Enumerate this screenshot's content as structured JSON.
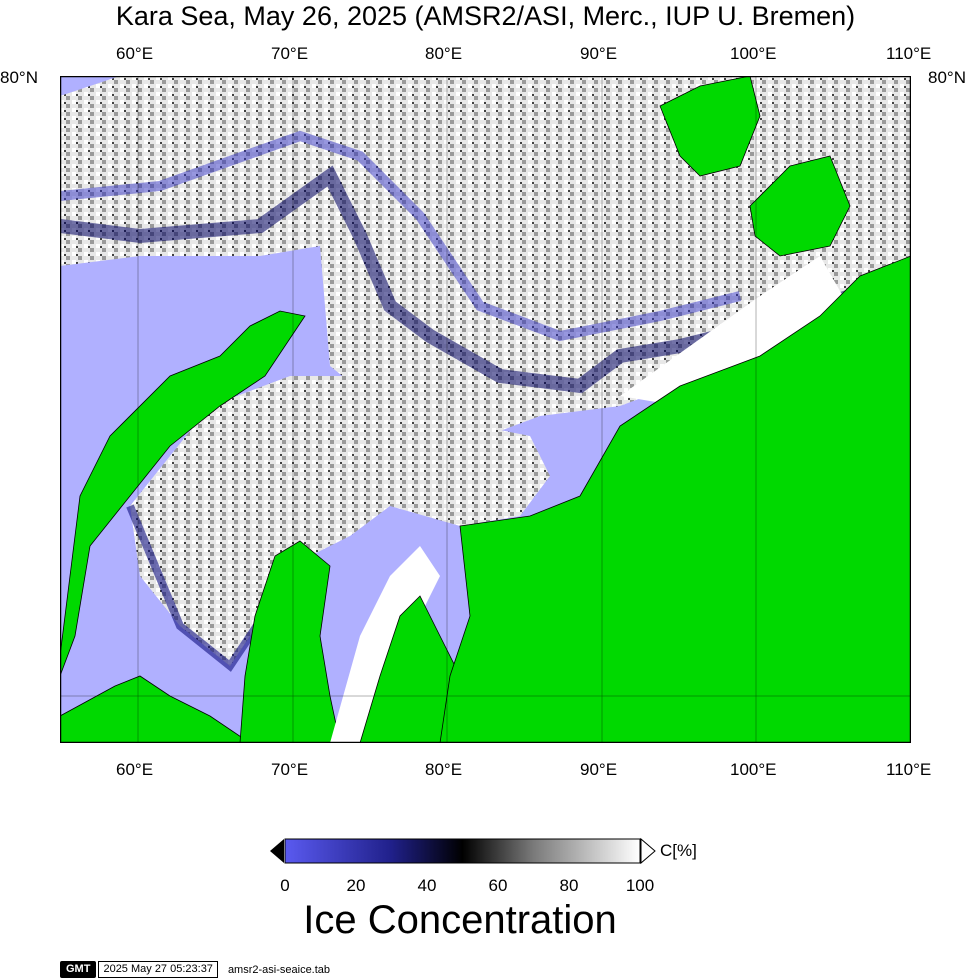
{
  "title": "Kara Sea, May 26, 2025 (AMSR2/ASI, Merc., IUP U. Bremen)",
  "map": {
    "lon_labels": [
      "60°E",
      "70°E",
      "80°E",
      "90°E",
      "100°E",
      "110°E"
    ],
    "lat_label": "80°N",
    "colors": {
      "ocean": "#b0b0ff",
      "land": "#00d900",
      "white_ice": "#ffffff",
      "dark_ice": "#000000"
    }
  },
  "colorbar": {
    "unit": "C[%]",
    "ticks": [
      "0",
      "20",
      "40",
      "60",
      "80",
      "100"
    ],
    "title": "Ice Concentration",
    "stops": [
      "#5a5af0",
      "#20208a",
      "#000000",
      "#7a7a7a",
      "#ffffff"
    ]
  },
  "stamp": {
    "logo": "GMT",
    "time": "2025 May 27 05:23:37",
    "file": "amsr2-asi-seaice.tab"
  }
}
